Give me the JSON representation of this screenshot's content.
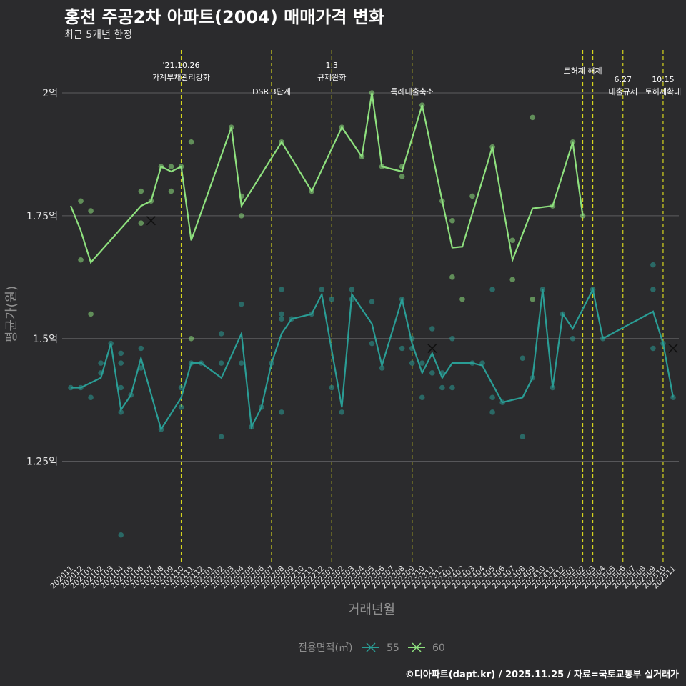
{
  "title": "홍천 주공2차 아파트(2004) 매매가격 변화",
  "subtitle": "최근 5개년 한정",
  "footer": "©디아파트(dapt.kr) / 2025.11.25 / 자료=국토교통부 실거래가",
  "colors": {
    "background": "#2b2b2d",
    "s55": "#2a9d95",
    "s60": "#8ee07e",
    "vline": "#d4d41e",
    "grid": "#5e5e60",
    "text": "#e6e6e6",
    "axis_title": "#8f8f8f"
  },
  "chart_data": {
    "type": "line",
    "xlabel": "거래년월",
    "ylabel": "평균가(원)",
    "legend_title": "전용면적(㎡)",
    "legend_position": "bottom",
    "categories": [
      "202011",
      "202012",
      "202101",
      "202102",
      "202103",
      "202104",
      "202105",
      "202106",
      "202107",
      "202108",
      "202109",
      "202110",
      "202111",
      "202112",
      "202201",
      "202202",
      "202203",
      "202204",
      "202205",
      "202206",
      "202207",
      "202208",
      "202209",
      "202210",
      "202211",
      "202212",
      "202301",
      "202302",
      "202303",
      "202304",
      "202305",
      "202306",
      "202307",
      "202308",
      "202309",
      "202310",
      "202311",
      "202312",
      "202401",
      "202402",
      "202403",
      "202404",
      "202405",
      "202406",
      "202407",
      "202408",
      "202409",
      "202410",
      "202411",
      "202412",
      "202501",
      "202502",
      "202503",
      "202504",
      "202505",
      "202506",
      "202507",
      "202508",
      "202509",
      "202510",
      "202511"
    ],
    "yticks": [
      1.25,
      1.5,
      1.75,
      2.0
    ],
    "ytick_labels": [
      "1.25억",
      "1.5억",
      "1.75억",
      "2억"
    ],
    "ylim": [
      1.04,
      2.08
    ],
    "series": [
      {
        "name": "55",
        "line": [
          [
            0,
            1.4
          ],
          [
            1,
            1.4
          ],
          [
            3,
            1.42
          ],
          [
            4,
            1.49
          ],
          [
            5,
            1.355
          ],
          [
            6,
            1.385
          ],
          [
            7,
            1.46
          ],
          [
            9,
            1.315
          ],
          [
            11,
            1.38
          ],
          [
            12,
            1.45
          ],
          [
            13,
            1.45
          ],
          [
            15,
            1.42
          ],
          [
            17,
            1.51
          ],
          [
            18,
            1.32
          ],
          [
            19,
            1.36
          ],
          [
            20,
            1.45
          ],
          [
            21,
            1.51
          ],
          [
            22,
            1.54
          ],
          [
            24,
            1.55
          ],
          [
            25,
            1.59
          ],
          [
            27,
            1.36
          ],
          [
            28,
            1.59
          ],
          [
            30,
            1.53
          ],
          [
            31,
            1.445
          ],
          [
            33,
            1.58
          ],
          [
            34,
            1.49
          ],
          [
            35,
            1.43
          ],
          [
            36,
            1.47
          ],
          [
            37,
            1.42
          ],
          [
            38,
            1.45
          ],
          [
            40,
            1.45
          ],
          [
            41,
            1.445
          ],
          [
            43,
            1.37
          ],
          [
            45,
            1.38
          ],
          [
            46,
            1.42
          ],
          [
            47,
            1.6
          ],
          [
            48,
            1.4
          ],
          [
            49,
            1.55
          ],
          [
            50,
            1.52
          ],
          [
            52,
            1.6
          ],
          [
            53,
            1.5
          ],
          [
            58,
            1.555
          ],
          [
            59,
            1.49
          ],
          [
            60,
            1.38
          ]
        ],
        "points": [
          [
            0,
            1.4
          ],
          [
            1,
            1.4
          ],
          [
            2,
            1.38
          ],
          [
            3,
            1.43
          ],
          [
            3,
            1.45
          ],
          [
            4,
            1.49
          ],
          [
            5,
            1.35
          ],
          [
            5,
            1.4
          ],
          [
            5,
            1.45
          ],
          [
            5,
            1.47
          ],
          [
            5,
            1.1
          ],
          [
            6,
            1.385
          ],
          [
            7,
            1.44
          ],
          [
            7,
            1.48
          ],
          [
            9,
            1.315
          ],
          [
            11,
            1.36
          ],
          [
            11,
            1.4
          ],
          [
            12,
            1.45
          ],
          [
            13,
            1.45
          ],
          [
            15,
            1.3
          ],
          [
            15,
            1.45
          ],
          [
            15,
            1.51
          ],
          [
            17,
            1.45
          ],
          [
            17,
            1.57
          ],
          [
            18,
            1.32
          ],
          [
            19,
            1.36
          ],
          [
            20,
            1.45
          ],
          [
            21,
            1.35
          ],
          [
            21,
            1.55
          ],
          [
            21,
            1.54
          ],
          [
            21,
            1.6
          ],
          [
            22,
            1.54
          ],
          [
            24,
            1.55
          ],
          [
            25,
            1.6
          ],
          [
            26,
            1.58
          ],
          [
            26,
            1.4
          ],
          [
            27,
            1.35
          ],
          [
            28,
            1.58
          ],
          [
            28,
            1.6
          ],
          [
            30,
            1.575
          ],
          [
            30,
            1.49
          ],
          [
            31,
            1.44
          ],
          [
            33,
            1.48
          ],
          [
            33,
            1.58
          ],
          [
            34,
            1.45
          ],
          [
            34,
            1.48
          ],
          [
            34,
            1.5
          ],
          [
            35,
            1.38
          ],
          [
            35,
            1.45
          ],
          [
            36,
            1.43
          ],
          [
            36,
            1.52
          ],
          [
            37,
            1.4
          ],
          [
            37,
            1.43
          ],
          [
            38,
            1.4
          ],
          [
            38,
            1.5
          ],
          [
            40,
            1.45
          ],
          [
            41,
            1.45
          ],
          [
            42,
            1.35
          ],
          [
            42,
            1.38
          ],
          [
            42,
            1.6
          ],
          [
            43,
            1.37
          ],
          [
            45,
            1.3
          ],
          [
            45,
            1.46
          ],
          [
            46,
            1.42
          ],
          [
            47,
            1.6
          ],
          [
            48,
            1.4
          ],
          [
            49,
            1.55
          ],
          [
            50,
            1.5
          ],
          [
            52,
            1.6
          ],
          [
            53,
            1.5
          ],
          [
            58,
            1.48
          ],
          [
            58,
            1.6
          ],
          [
            58,
            1.65
          ],
          [
            59,
            1.49
          ],
          [
            60,
            1.38
          ]
        ],
        "x_markers": [
          [
            36,
            1.48
          ],
          [
            60,
            1.48
          ]
        ]
      },
      {
        "name": "60",
        "line": [
          [
            0,
            1.77
          ],
          [
            1,
            1.72
          ],
          [
            2,
            1.655
          ],
          [
            7,
            1.77
          ],
          [
            8,
            1.78
          ],
          [
            9,
            1.85
          ],
          [
            10,
            1.84
          ],
          [
            11,
            1.85
          ],
          [
            12,
            1.7
          ],
          [
            16,
            1.93
          ],
          [
            17,
            1.77
          ],
          [
            21,
            1.9
          ],
          [
            24,
            1.8
          ],
          [
            27,
            1.93
          ],
          [
            29,
            1.87
          ],
          [
            30,
            2.0
          ],
          [
            31,
            1.85
          ],
          [
            33,
            1.84
          ],
          [
            35,
            1.975
          ],
          [
            37,
            1.78
          ],
          [
            38,
            1.685
          ],
          [
            39,
            1.687
          ],
          [
            42,
            1.89
          ],
          [
            44,
            1.66
          ],
          [
            46,
            1.765
          ],
          [
            48,
            1.77
          ],
          [
            50,
            1.9
          ],
          [
            51,
            1.75
          ]
        ],
        "points": [
          [
            1,
            1.78
          ],
          [
            1,
            1.66
          ],
          [
            2,
            1.76
          ],
          [
            2,
            1.55
          ],
          [
            7,
            1.8
          ],
          [
            7,
            1.735
          ],
          [
            8,
            1.78
          ],
          [
            9,
            1.85
          ],
          [
            10,
            1.85
          ],
          [
            10,
            1.8
          ],
          [
            11,
            1.85
          ],
          [
            12,
            1.9
          ],
          [
            12,
            1.5
          ],
          [
            16,
            1.93
          ],
          [
            17,
            1.75
          ],
          [
            17,
            1.79
          ],
          [
            21,
            1.9
          ],
          [
            24,
            1.8
          ],
          [
            27,
            1.93
          ],
          [
            29,
            1.87
          ],
          [
            30,
            2.0
          ],
          [
            31,
            1.85
          ],
          [
            33,
            1.83
          ],
          [
            33,
            1.85
          ],
          [
            35,
            1.975
          ],
          [
            37,
            1.78
          ],
          [
            38,
            1.74
          ],
          [
            38,
            1.625
          ],
          [
            39,
            1.58
          ],
          [
            40,
            1.79
          ],
          [
            42,
            1.89
          ],
          [
            44,
            1.7
          ],
          [
            44,
            1.62
          ],
          [
            46,
            1.58
          ],
          [
            46,
            1.95
          ],
          [
            48,
            1.77
          ],
          [
            50,
            1.9
          ],
          [
            51,
            1.75
          ]
        ],
        "x_markers": [
          [
            8,
            1.74
          ]
        ]
      }
    ],
    "vlines": [
      {
        "x": 11,
        "label_lines": [
          "'21.10.26",
          "가계부채관리강화"
        ],
        "level": 1
      },
      {
        "x": 20,
        "label_lines": [
          "DSR 3단계"
        ],
        "level": 2
      },
      {
        "x": 26,
        "label_lines": [
          "1.3",
          "규제완화"
        ],
        "level": 1
      },
      {
        "x": 34,
        "label_lines": [
          "특례대출축소"
        ],
        "level": 2
      },
      {
        "x": 51,
        "label_lines": [
          "토허제 해제"
        ],
        "level": 0
      },
      {
        "x": 52,
        "label_lines": [],
        "level": 0
      },
      {
        "x": 55,
        "label_lines": [
          "6.27",
          "대출규제"
        ],
        "level": 2
      },
      {
        "x": 59,
        "label_lines": [
          "10.15",
          "토허제확대"
        ],
        "level": 2
      }
    ]
  }
}
